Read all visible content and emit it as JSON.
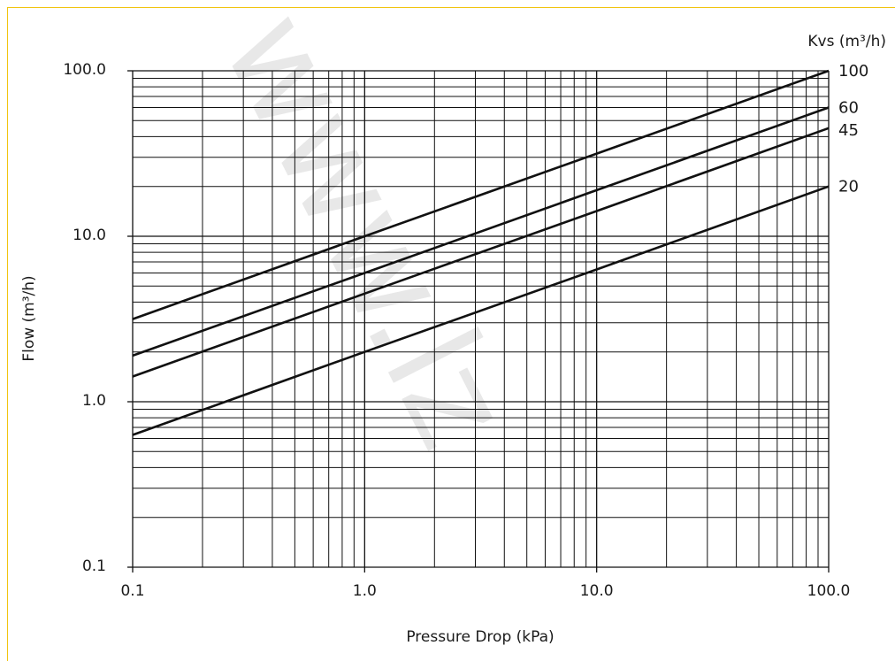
{
  "chart_data": {
    "type": "line",
    "x_scale": "log",
    "y_scale": "log",
    "xlim": [
      0.1,
      100
    ],
    "ylim": [
      0.1,
      100
    ],
    "xlabel": "Pressure Drop (kPa)",
    "ylabel": "Flow (m³/h)",
    "legend_title": "Kvs (m³/h)",
    "legend_placement": "right, at line ends",
    "grid": true,
    "x_ticks": [
      {
        "value": 0.1,
        "label": "0.1"
      },
      {
        "value": 1,
        "label": "1.0"
      },
      {
        "value": 10,
        "label": "10.0"
      },
      {
        "value": 100,
        "label": "100.0"
      }
    ],
    "y_ticks": [
      {
        "value": 0.1,
        "label": "0.1"
      },
      {
        "value": 1,
        "label": "1.0"
      },
      {
        "value": 10,
        "label": "10.0"
      },
      {
        "value": 100,
        "label": "100.0"
      }
    ],
    "series": [
      {
        "name": "100",
        "kvs": 100,
        "x": [
          0.1,
          1,
          10,
          100
        ],
        "y": [
          3.16,
          10,
          31.6,
          100
        ]
      },
      {
        "name": "60",
        "kvs": 60,
        "x": [
          0.1,
          1,
          10,
          100
        ],
        "y": [
          1.9,
          6,
          19,
          60
        ]
      },
      {
        "name": "45",
        "kvs": 45,
        "x": [
          0.1,
          1,
          10,
          100
        ],
        "y": [
          1.42,
          4.5,
          14.2,
          45
        ]
      },
      {
        "name": "20",
        "kvs": 20,
        "x": [
          0.1,
          1,
          10,
          100
        ],
        "y": [
          0.63,
          2,
          6.3,
          20
        ]
      }
    ],
    "watermark": "www.lz"
  }
}
